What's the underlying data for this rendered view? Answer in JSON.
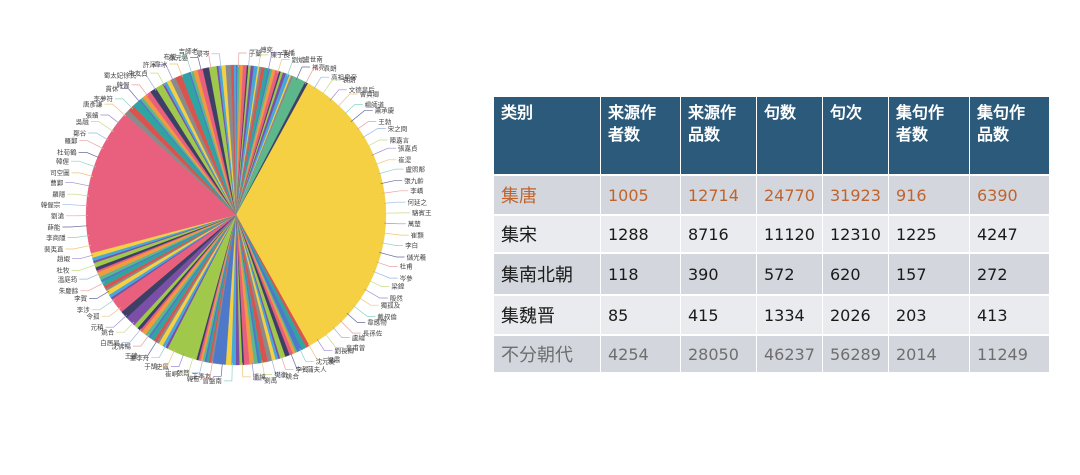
{
  "table": {
    "headers": [
      "类别",
      "来源作者数",
      "来源作品数",
      "句数",
      "句次",
      "集句作者数",
      "集句作品数"
    ],
    "header_lines": [
      [
        "类别"
      ],
      [
        "来源作",
        "者数"
      ],
      [
        "来源作",
        "品数"
      ],
      [
        "句数"
      ],
      [
        "句次"
      ],
      [
        "集句作",
        "者数"
      ],
      [
        "集句作",
        "品数"
      ]
    ],
    "rows": [
      {
        "category": "集唐",
        "values": [
          "1005",
          "12714",
          "24770",
          "31923",
          "916",
          "6390"
        ],
        "color": "#c0632d"
      },
      {
        "category": "集宋",
        "values": [
          "1288",
          "8716",
          "11120",
          "12310",
          "1225",
          "4247"
        ],
        "color": "#1a1a1a"
      },
      {
        "category": "集南北朝",
        "values": [
          "118",
          "390",
          "572",
          "620",
          "157",
          "272"
        ],
        "color": "#1a1a1a"
      },
      {
        "category": "集魏晋",
        "values": [
          "85",
          "415",
          "1334",
          "2026",
          "203",
          "413"
        ],
        "color": "#1a1a1a"
      },
      {
        "category": "不分朝代",
        "values": [
          "4254",
          "28050",
          "46237",
          "56289",
          "2014",
          "11249"
        ],
        "color": "#6e6e6e"
      }
    ],
    "header_bg": "#2c5a7b"
  },
  "chart_data": {
    "type": "pie",
    "title": "",
    "description": "Pie chart of source poets for 集句 poems; two dominant slices (yellow, pink) with many thin slices, labeled by poet name",
    "dominant_slices": [
      {
        "label": "杜甫",
        "approx_share": 0.34,
        "color": "#f5d042"
      },
      {
        "label": "(pink large slice)",
        "approx_share": 0.16,
        "color": "#e8607e"
      }
    ],
    "labels_visible": [
      "子蘭",
      "傅奕",
      "陳子良",
      "李播",
      "劉斌",
      "盧世南",
      "褚亮",
      "袁朗",
      "高祖皇帝",
      "袁朗",
      "文德皇后",
      "舍真卿",
      "楊師道",
      "蕭承慶",
      "王勃",
      "宋之問",
      "陳嘉言",
      "張嘉貞",
      "崔湜",
      "盧照鄰",
      "張九齡",
      "李嶠",
      "何延之",
      "駱賓王",
      "萬楚",
      "崔顥",
      "李白",
      "儲光羲",
      "杜甫",
      "岑參",
      "梁鍠",
      "殷然",
      "獨孤及",
      "戴叔倫",
      "韋應物",
      "長孫佐",
      "盧綸",
      "皇甫曾",
      "劉長卿",
      "梁肅",
      "沈元慶",
      "蒲夫人",
      "李賀",
      "姚合",
      "樊衡",
      "劉禹",
      "潘緯",
      "曾盤南",
      "王季友",
      "韓愈",
      "張籍",
      "崔峒",
      "史鳳",
      "于鵠",
      "董李舟",
      "王建",
      "沈佛暢",
      "白居易",
      "姚合",
      "元稹",
      "令孤",
      "李涉",
      "李賀",
      "朱慶餘",
      "溫庭筠",
      "杜牧",
      "趙嘏",
      "裴夷直",
      "李商隱",
      "薛能",
      "劉滄",
      "韓偓宗",
      "羅隱",
      "曹鄴",
      "司空圖",
      "韓偓",
      "杜荀鶴",
      "羅鄴",
      "鄭谷",
      "吳融",
      "張蠙",
      "唐彥謙",
      "李夢符",
      "貫休",
      "韓偓",
      "蜀太妃徐氏",
      "朱友貞",
      "許渾",
      "韋冰",
      "布燮",
      "孫元晏",
      "吉師老",
      "景岑"
    ],
    "slice_count_approx": 200,
    "legend": "none (labels with leader lines)"
  }
}
